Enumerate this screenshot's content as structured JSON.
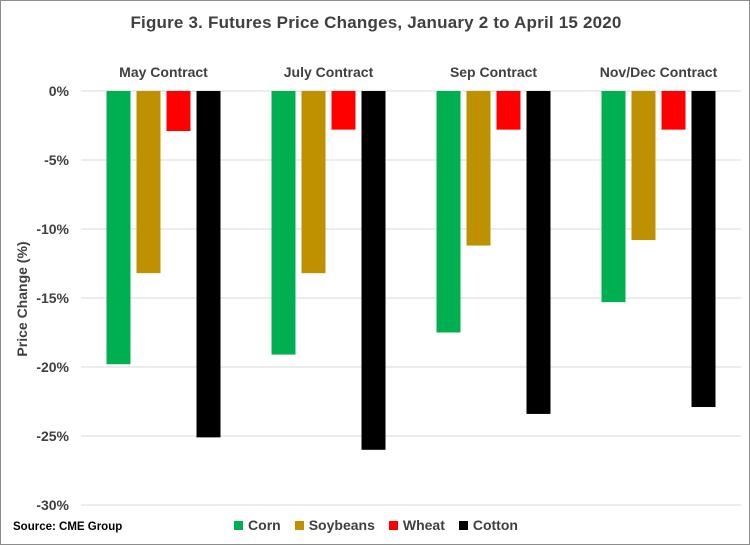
{
  "chart_data": {
    "type": "bar",
    "title": "Figure  3. Futures Price Changes, January  2 to April  15 2020",
    "ylabel": "Price Change (%)",
    "xlabel": "",
    "ylim": [
      -30,
      0
    ],
    "yticks": [
      0,
      -5,
      -10,
      -15,
      -20,
      -25,
      -30
    ],
    "ytick_labels": [
      "0%",
      "-5%",
      "-10%",
      "-15%",
      "-20%",
      "-25%",
      "-30%"
    ],
    "categories": [
      "May Contract",
      "July Contract",
      "Sep Contract",
      "Nov/Dec Contract"
    ],
    "series": [
      {
        "name": "Corn",
        "color": "#00b050",
        "values": [
          -19.8,
          -19.1,
          -17.5,
          -15.3
        ]
      },
      {
        "name": "Soybeans",
        "color": "#bf9000",
        "values": [
          -13.2,
          -13.2,
          -11.2,
          -10.8
        ]
      },
      {
        "name": "Wheat",
        "color": "#ff0000",
        "values": [
          -2.9,
          -2.8,
          -2.8,
          -2.8
        ]
      },
      {
        "name": "Cotton",
        "color": "#000000",
        "values": [
          -25.1,
          -26.0,
          -23.4,
          -22.9
        ]
      }
    ],
    "grid": true,
    "legend": "bottom"
  },
  "source": "Source: CME Group"
}
